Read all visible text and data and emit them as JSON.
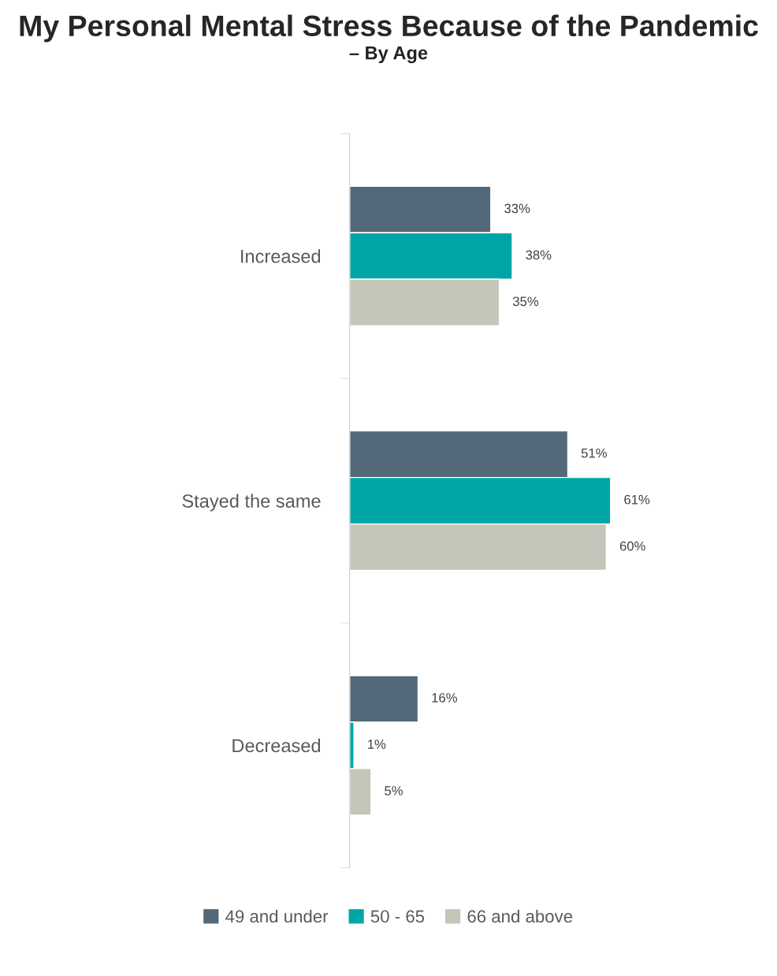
{
  "chart_data": {
    "type": "bar",
    "orientation": "horizontal",
    "title": "My Personal Mental Stress Because of the Pandemic",
    "subtitle": "– By Age",
    "categories": [
      "Increased",
      "Stayed the same",
      "Decreased"
    ],
    "series": [
      {
        "name": "49 and under",
        "color": "#536878",
        "values": [
          33,
          51,
          16
        ],
        "value_labels": [
          "33%",
          "51%",
          "16%"
        ]
      },
      {
        "name": "50 - 65",
        "color": "#00a6a6",
        "values": [
          38,
          61,
          1
        ],
        "value_labels": [
          "38%",
          "61%",
          "1%"
        ]
      },
      {
        "name": "66 and above",
        "color": "#c5c5b9",
        "values": [
          35,
          60,
          5
        ],
        "value_labels": [
          "35%",
          "60%",
          "5%"
        ]
      }
    ],
    "legend": "bottom",
    "grid": false
  }
}
